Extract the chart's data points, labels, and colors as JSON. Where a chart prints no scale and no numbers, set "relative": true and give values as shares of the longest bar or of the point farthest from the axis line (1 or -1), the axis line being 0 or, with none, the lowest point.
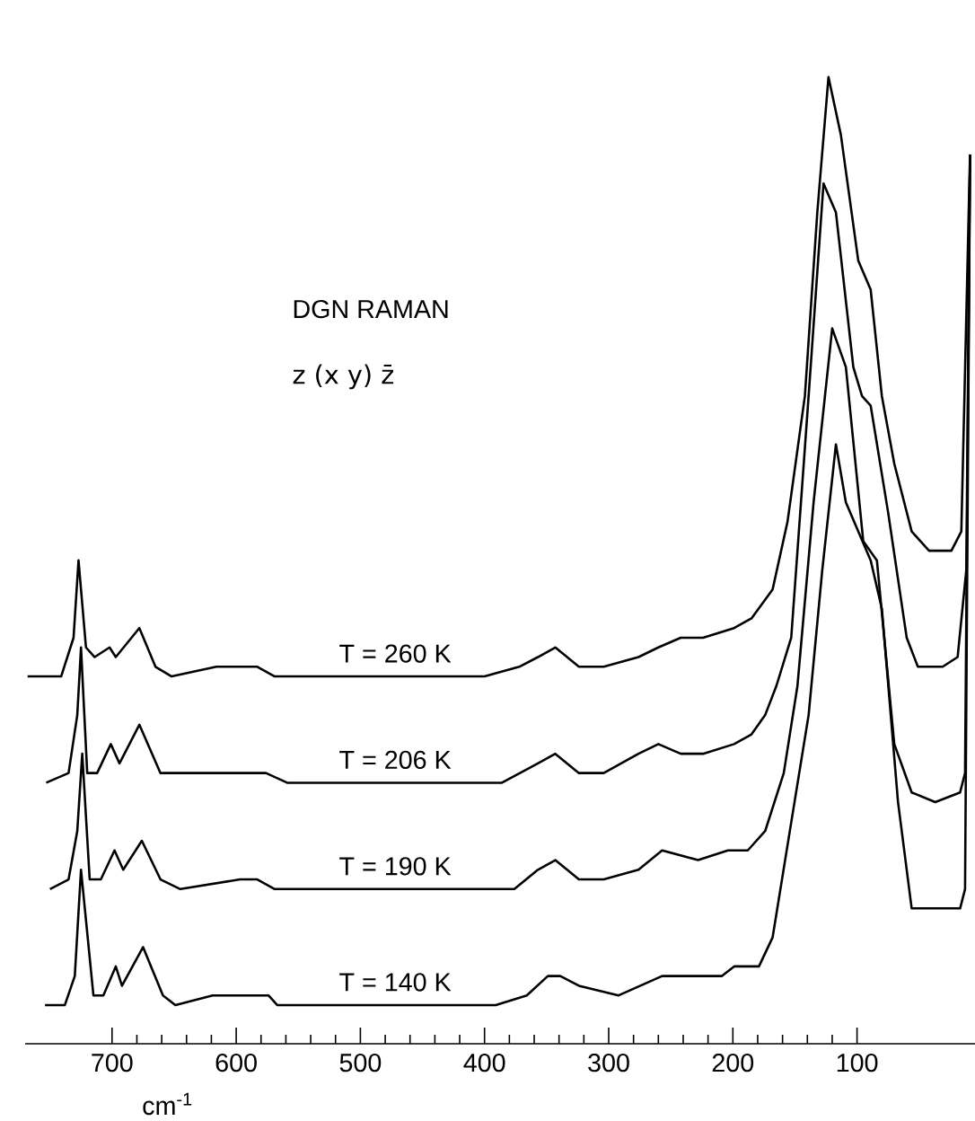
{
  "chart_data": {
    "type": "line",
    "title": "DGN RAMAN",
    "subtitle": "z (x y) z̄",
    "xlabel": "cm$^{-1}$",
    "relative": true,
    "xlim": [
      770,
      5
    ],
    "xticks": [
      700,
      600,
      500,
      400,
      300,
      200,
      100
    ],
    "series": [
      {
        "name": "T = 260 K",
        "color": "#000000",
        "x": [
          768,
          741,
          731,
          727,
          721,
          714,
          702,
          697,
          678,
          665,
          652,
          616,
          583,
          569,
          501,
          400,
          372,
          357,
          343,
          324,
          304,
          276,
          260,
          242,
          224,
          199,
          185,
          168,
          156,
          142,
          132,
          123,
          113,
          99,
          89,
          80,
          70,
          56,
          42,
          24,
          16,
          9
        ],
        "values": [
          0.38,
          0.38,
          0.42,
          0.5,
          0.41,
          0.4,
          0.41,
          0.4,
          0.43,
          0.39,
          0.38,
          0.39,
          0.39,
          0.38,
          0.38,
          0.38,
          0.39,
          0.4,
          0.41,
          0.39,
          0.39,
          0.4,
          0.41,
          0.42,
          0.42,
          0.43,
          0.44,
          0.47,
          0.54,
          0.67,
          0.86,
          1.0,
          0.94,
          0.81,
          0.78,
          0.67,
          0.6,
          0.53,
          0.51,
          0.51,
          0.53,
          0.92
        ]
      },
      {
        "name": "T = 206 K",
        "color": "#000000",
        "x": [
          753,
          735,
          728,
          725,
          720,
          712,
          701,
          694,
          678,
          661,
          645,
          616,
          576,
          559,
          501,
          386,
          357,
          343,
          324,
          304,
          276,
          260,
          242,
          224,
          199,
          185,
          174,
          165,
          153,
          139,
          127,
          117,
          103,
          96,
          89,
          75,
          60,
          51,
          31,
          19,
          12,
          9
        ],
        "values": [
          0.27,
          0.28,
          0.34,
          0.41,
          0.28,
          0.28,
          0.31,
          0.29,
          0.33,
          0.28,
          0.28,
          0.28,
          0.28,
          0.27,
          0.27,
          0.27,
          0.29,
          0.3,
          0.28,
          0.28,
          0.3,
          0.31,
          0.3,
          0.3,
          0.31,
          0.32,
          0.34,
          0.37,
          0.42,
          0.67,
          0.89,
          0.86,
          0.7,
          0.67,
          0.66,
          0.55,
          0.42,
          0.39,
          0.39,
          0.4,
          0.49,
          0.92
        ]
      },
      {
        "name": "T = 190 K",
        "color": "#000000",
        "x": [
          750,
          735,
          728,
          724,
          718,
          709,
          698,
          691,
          676,
          661,
          645,
          597,
          583,
          569,
          549,
          376,
          357,
          343,
          324,
          304,
          276,
          257,
          228,
          204,
          188,
          174,
          159,
          148,
          135,
          120,
          109,
          95,
          84,
          70,
          56,
          37,
          17,
          13,
          9
        ],
        "values": [
          0.16,
          0.17,
          0.22,
          0.3,
          0.17,
          0.17,
          0.2,
          0.18,
          0.21,
          0.17,
          0.16,
          0.17,
          0.17,
          0.16,
          0.16,
          0.16,
          0.18,
          0.19,
          0.17,
          0.17,
          0.18,
          0.2,
          0.19,
          0.2,
          0.2,
          0.22,
          0.28,
          0.37,
          0.56,
          0.74,
          0.7,
          0.52,
          0.5,
          0.31,
          0.26,
          0.25,
          0.26,
          0.28,
          0.92
        ]
      },
      {
        "name": "T = 140 K",
        "color": "#000000",
        "x": [
          754,
          738,
          730,
          725,
          715,
          707,
          697,
          692,
          675,
          659,
          649,
          619,
          574,
          567,
          554,
          441,
          391,
          366,
          349,
          339,
          324,
          292,
          257,
          231,
          209,
          199,
          179,
          168,
          139,
          128,
          117,
          109,
          89,
          80,
          67,
          56,
          46,
          31,
          17,
          13,
          9
        ],
        "values": [
          0.04,
          0.04,
          0.07,
          0.18,
          0.05,
          0.05,
          0.08,
          0.06,
          0.1,
          0.05,
          0.04,
          0.05,
          0.05,
          0.04,
          0.04,
          0.04,
          0.04,
          0.05,
          0.07,
          0.07,
          0.06,
          0.05,
          0.07,
          0.07,
          0.07,
          0.08,
          0.08,
          0.11,
          0.34,
          0.49,
          0.62,
          0.56,
          0.5,
          0.45,
          0.25,
          0.14,
          0.14,
          0.14,
          0.14,
          0.16,
          0.92
        ]
      }
    ]
  }
}
